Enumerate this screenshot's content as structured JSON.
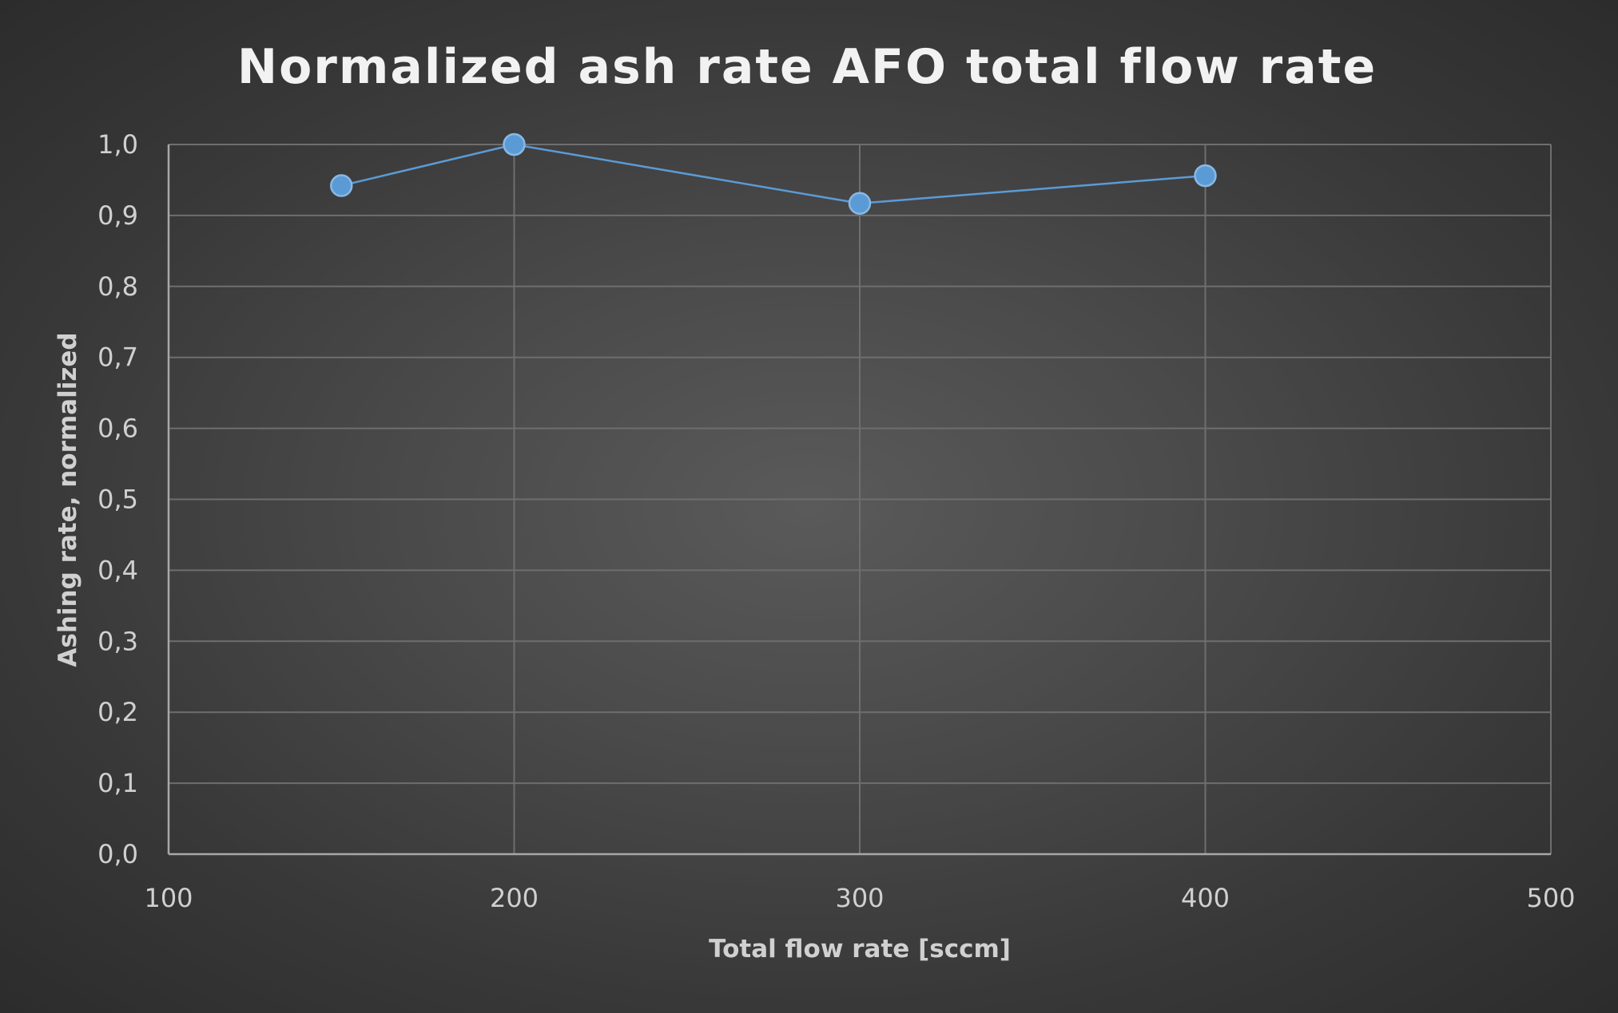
{
  "chart_data": {
    "type": "scatter",
    "title": "Normalized ash rate AFO total flow rate",
    "xlabel": "Total flow rate [sccm]",
    "ylabel": "Ashing rate, normalized",
    "xlim": [
      100,
      500
    ],
    "ylim": [
      0.0,
      1.0
    ],
    "xticks": [
      100,
      200,
      300,
      400,
      500
    ],
    "xtick_labels": [
      "100",
      "200",
      "300",
      "400",
      "500"
    ],
    "yticks": [
      0.0,
      0.1,
      0.2,
      0.3,
      0.4,
      0.5,
      0.6,
      0.7,
      0.8,
      0.9,
      1.0
    ],
    "ytick_labels": [
      "0,0",
      "0,1",
      "0,2",
      "0,3",
      "0,4",
      "0,5",
      "0,6",
      "0,7",
      "0,8",
      "0,9",
      "1,0"
    ],
    "grid": true,
    "legend": "none",
    "series": [
      {
        "x": [
          150,
          200,
          300,
          400
        ],
        "y": [
          0.942,
          1.0,
          0.917,
          0.956
        ],
        "color": "#5b9bd5",
        "lines": true,
        "markers": true
      }
    ]
  }
}
